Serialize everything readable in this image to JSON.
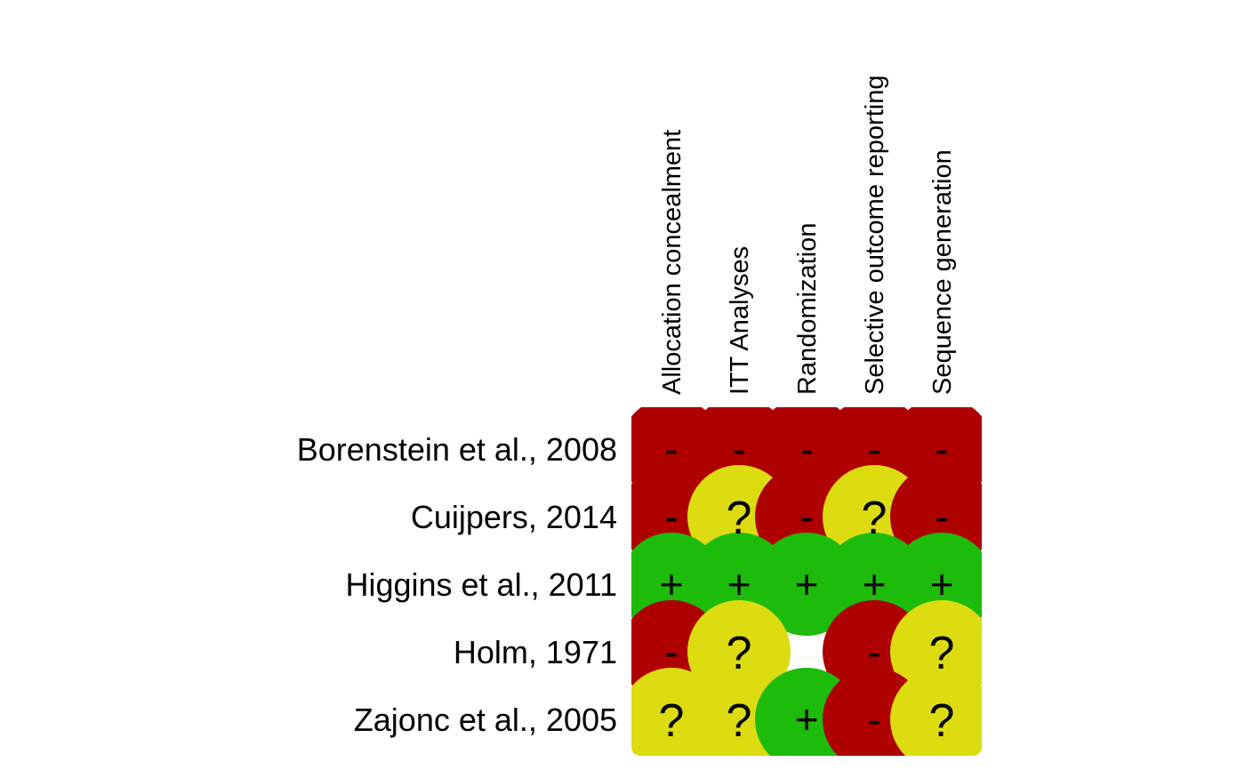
{
  "chart_data": {
    "type": "heatmap",
    "title": "",
    "columns": [
      "Allocation concealment",
      "ITT Analyses",
      "Randomization",
      "Selective outcome reporting",
      "Sequence generation"
    ],
    "rows": [
      "Borenstein et al., 2008",
      "Cuijpers, 2014",
      "Higgins et al., 2011",
      "Holm, 1971",
      "Zajonc et al., 2005"
    ],
    "values": [
      [
        "-",
        "-",
        "-",
        "-",
        "-"
      ],
      [
        "-",
        "?",
        "-",
        "?",
        "-"
      ],
      [
        "+",
        "+",
        "+",
        "+",
        "+"
      ],
      [
        "-",
        "?",
        "",
        "-",
        "?"
      ],
      [
        "?",
        "?",
        "+",
        "-",
        "?"
      ]
    ],
    "colors": {
      "-": "#af0000",
      "?": "#dcdc10",
      "+": "#1dbb0a"
    }
  }
}
